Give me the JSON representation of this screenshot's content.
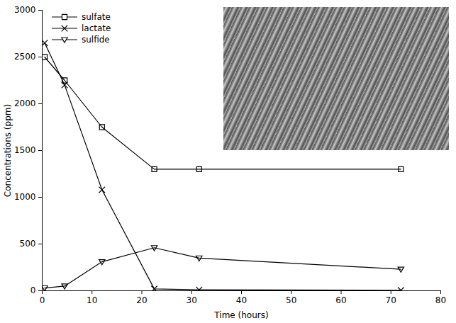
{
  "chart_data": {
    "type": "line",
    "xlabel": "Time (hours)",
    "ylabel": "Concentrations (ppm)",
    "x": [
      0.5,
      4.5,
      12,
      22.5,
      31.5,
      72
    ],
    "series": [
      {
        "name": "sulfate",
        "color": "#000000",
        "marker": "square",
        "values": [
          2500,
          2250,
          1750,
          1300,
          1300,
          1300
        ]
      },
      {
        "name": "lactate",
        "color": "#000000",
        "marker": "x",
        "values": [
          2650,
          2200,
          1080,
          20,
          10,
          5
        ]
      },
      {
        "name": "sulfide",
        "color": "#000000",
        "marker": "triangle-down",
        "values": [
          30,
          50,
          310,
          460,
          350,
          230
        ]
      }
    ],
    "xlim": [
      0,
      80
    ],
    "xticks": [
      0,
      10,
      20,
      30,
      40,
      50,
      60,
      70,
      80
    ],
    "ylim": [
      0,
      3000
    ],
    "yticks": [
      0,
      500,
      1000,
      1500,
      2000,
      2500,
      3000
    ],
    "legend": "upper left"
  }
}
